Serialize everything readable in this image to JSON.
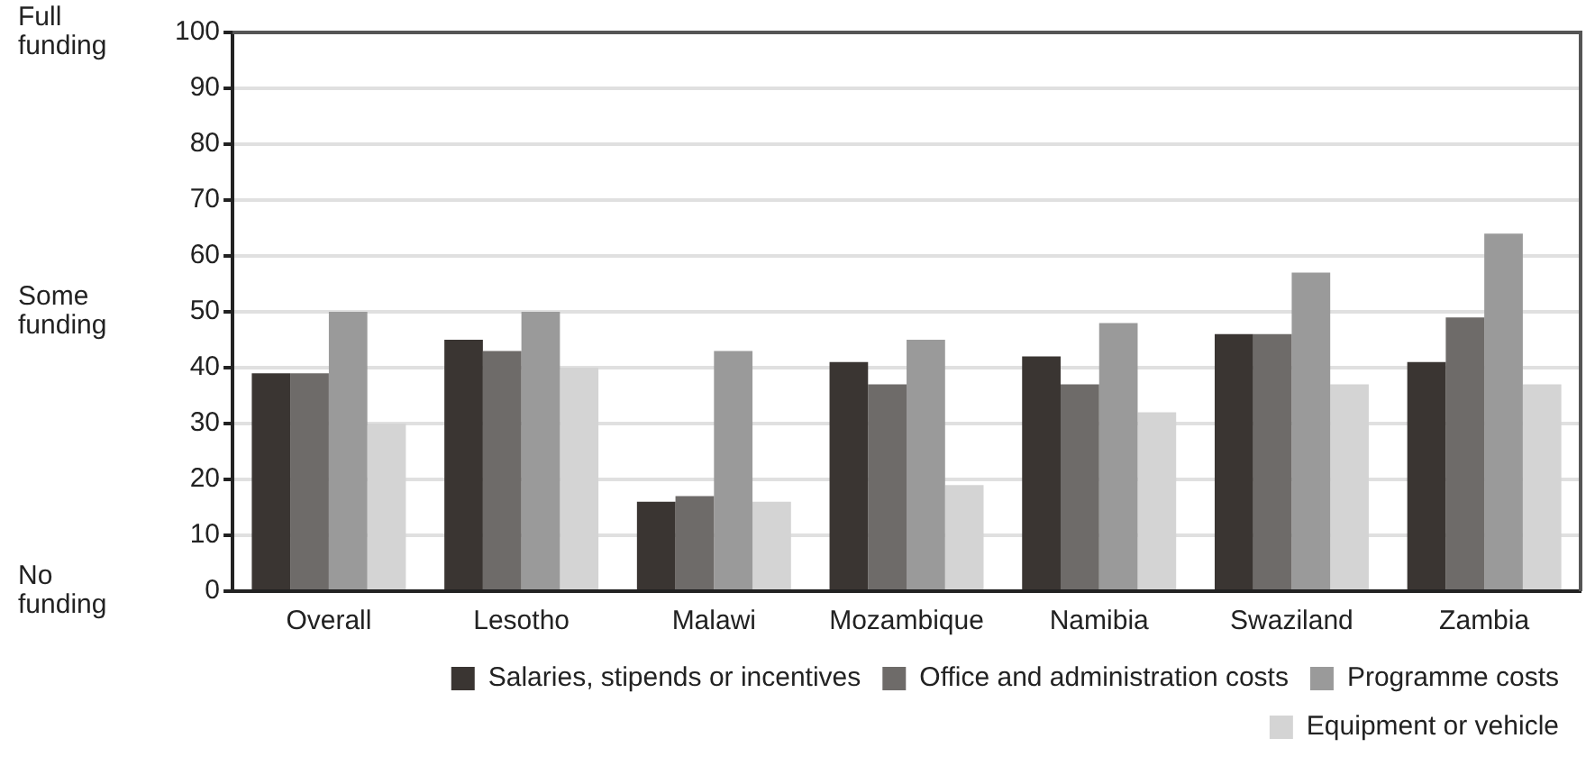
{
  "chart_data": {
    "type": "bar",
    "categories": [
      "Overall",
      "Lesotho",
      "Malawi",
      "Mozambique",
      "Namibia",
      "Swaziland",
      "Zambia"
    ],
    "series": [
      {
        "name": "Salaries, stipends or incentives",
        "color": "#3a3532",
        "values": [
          39,
          45,
          16,
          41,
          42,
          46,
          41
        ]
      },
      {
        "name": "Office and administration costs",
        "color": "#6e6b69",
        "values": [
          39,
          43,
          17,
          37,
          37,
          46,
          49
        ]
      },
      {
        "name": "Programme costs",
        "color": "#9a9a9a",
        "values": [
          50,
          50,
          43,
          45,
          48,
          57,
          64
        ]
      },
      {
        "name": "Equipment or vehicle",
        "color": "#d4d4d4",
        "values": [
          30,
          40,
          16,
          19,
          32,
          37,
          37
        ]
      }
    ],
    "ylim": [
      0,
      100
    ],
    "yticks": [
      0,
      10,
      20,
      30,
      40,
      50,
      60,
      70,
      80,
      90,
      100
    ],
    "grid": "y",
    "legend": "bottom right",
    "annotations": [
      "Full funding",
      "Some funding",
      "No funding"
    ]
  }
}
